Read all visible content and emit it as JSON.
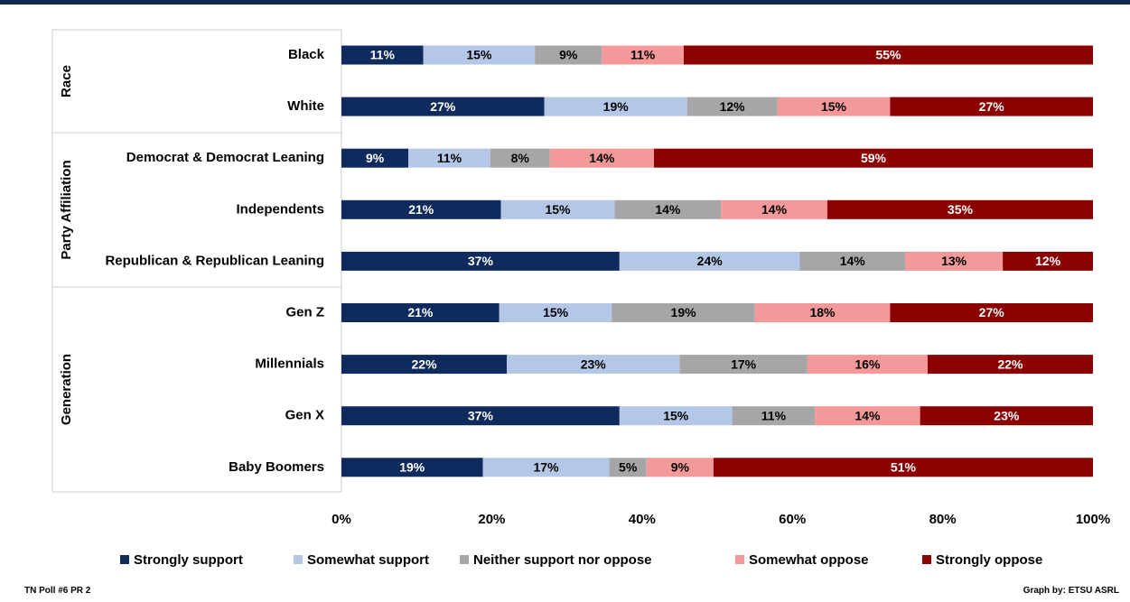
{
  "chart_data": {
    "type": "bar",
    "orientation": "horizontal",
    "stacked": "percent",
    "groups": [
      {
        "name": "Race",
        "rows": [
          0,
          1
        ]
      },
      {
        "name": "Party Affiliation",
        "rows": [
          2,
          3,
          4
        ]
      },
      {
        "name": "Generation",
        "rows": [
          5,
          6,
          7,
          8
        ]
      }
    ],
    "categories": [
      "Black",
      "White",
      "Democrat & Democrat Leaning",
      "Independents",
      "Republican & Republican Leaning",
      "Gen Z",
      "Millennials",
      "Gen X",
      "Baby Boomers"
    ],
    "series": [
      {
        "name": "Strongly support",
        "color": "#0f2a5c",
        "values": [
          11,
          27,
          9,
          21,
          37,
          21,
          22,
          37,
          19
        ]
      },
      {
        "name": "Somewhat support",
        "color": "#b4c7e7",
        "values": [
          15,
          19,
          11,
          15,
          24,
          15,
          23,
          15,
          17
        ]
      },
      {
        "name": "Neither support nor oppose",
        "color": "#a6a6a6",
        "values": [
          9,
          12,
          8,
          14,
          14,
          19,
          17,
          11,
          5
        ]
      },
      {
        "name": "Somewhat oppose",
        "color": "#f4999a",
        "values": [
          11,
          15,
          14,
          14,
          13,
          18,
          16,
          14,
          9
        ]
      },
      {
        "name": "Strongly oppose",
        "color": "#8b0000",
        "values": [
          55,
          27,
          59,
          35,
          12,
          27,
          22,
          23,
          51
        ]
      }
    ],
    "data_labels": true,
    "xlim": [
      0,
      100
    ],
    "x_ticks": [
      "0%",
      "20%",
      "40%",
      "60%",
      "80%",
      "100%"
    ],
    "legend_position": "bottom",
    "grid": false
  },
  "footer": {
    "left": "TN Poll #6 PR 2",
    "right": "Graph by: ETSU ASRL"
  }
}
